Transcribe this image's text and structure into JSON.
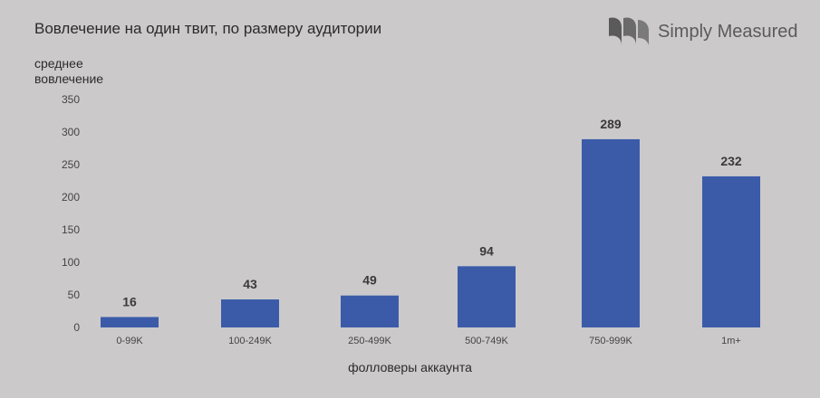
{
  "chart_data": {
    "type": "bar",
    "title": "Вовлечение на один твит, по размеру аудитории",
    "ylabel": "среднее вовлечение",
    "xlabel": "фолловеры аккаунта",
    "categories": [
      "0-99K",
      "100-249K",
      "250-499K",
      "500-749K",
      "750-999K",
      "1m+"
    ],
    "values": [
      16,
      43,
      49,
      94,
      289,
      232
    ],
    "ylim": [
      0,
      350
    ],
    "yticks": [
      0,
      50,
      100,
      150,
      200,
      250,
      300,
      350
    ],
    "grid": false,
    "bar_color": "#3b5ba9",
    "data_labels": true
  },
  "logo": {
    "text": "Simply Measured",
    "icon": "simply-measured-logo-icon"
  }
}
